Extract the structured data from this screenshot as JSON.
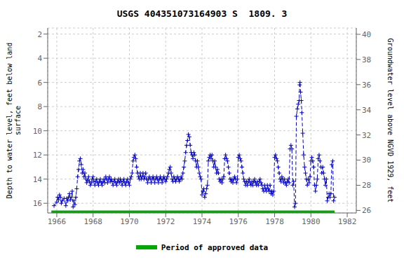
{
  "chart_data": {
    "type": "line",
    "title": "USGS 404351073164903 S  1809. 3",
    "ylabel": "Depth to water level, feet below land\nsurface",
    "y2label": "Groundwater level above NGVD 1929, feet",
    "xlim": [
      1965.5,
      1982.5
    ],
    "xticks": [
      1966,
      1968,
      1970,
      1972,
      1974,
      1976,
      1978,
      1980,
      1982
    ],
    "ylim": [
      16.8,
      1.5
    ],
    "yticks": [
      2,
      4,
      6,
      8,
      10,
      12,
      14,
      16
    ],
    "y2lim": [
      25.8,
      40.5
    ],
    "y2ticks": [
      26,
      28,
      30,
      32,
      34,
      36,
      38,
      40
    ],
    "grid": true,
    "legend": "bottom",
    "series": [
      {
        "color": "#0000cc",
        "marker": "plus",
        "line_style": "dashed",
        "x": [
          1965.85,
          1966.0,
          1966.05,
          1966.1,
          1966.15,
          1966.2,
          1966.25,
          1966.3,
          1966.4,
          1966.5,
          1966.55,
          1966.6,
          1966.65,
          1966.7,
          1966.75,
          1966.8,
          1966.85,
          1966.9,
          1966.95,
          1967.0,
          1967.05,
          1967.1,
          1967.15,
          1967.2,
          1967.25,
          1967.3,
          1967.35,
          1967.4,
          1967.45,
          1967.5,
          1967.55,
          1967.6,
          1967.65,
          1967.7,
          1967.75,
          1967.8,
          1967.85,
          1967.9,
          1967.95,
          1968.0,
          1968.05,
          1968.1,
          1968.15,
          1968.2,
          1968.25,
          1968.3,
          1968.35,
          1968.4,
          1968.45,
          1968.5,
          1968.55,
          1968.6,
          1968.65,
          1968.7,
          1968.75,
          1968.8,
          1968.85,
          1968.9,
          1968.95,
          1969.0,
          1969.05,
          1969.1,
          1969.15,
          1969.2,
          1969.25,
          1969.3,
          1969.35,
          1969.4,
          1969.45,
          1969.5,
          1969.55,
          1969.6,
          1969.65,
          1969.7,
          1969.75,
          1969.8,
          1969.85,
          1969.9,
          1969.95,
          1970.0,
          1970.05,
          1970.1,
          1970.15,
          1970.2,
          1970.25,
          1970.3,
          1970.35,
          1970.4,
          1970.45,
          1970.5,
          1970.55,
          1970.6,
          1970.65,
          1970.7,
          1970.75,
          1970.8,
          1970.85,
          1970.9,
          1970.95,
          1971.0,
          1971.05,
          1971.1,
          1971.15,
          1971.2,
          1971.25,
          1971.3,
          1971.35,
          1971.4,
          1971.45,
          1971.5,
          1971.55,
          1971.6,
          1971.65,
          1971.7,
          1971.75,
          1971.8,
          1971.85,
          1971.9,
          1971.95,
          1972.0,
          1972.05,
          1972.1,
          1972.15,
          1972.2,
          1972.25,
          1972.3,
          1972.35,
          1972.4,
          1972.45,
          1972.5,
          1972.55,
          1972.6,
          1972.65,
          1972.7,
          1972.75,
          1972.8,
          1972.85,
          1972.9,
          1972.95,
          1973.0,
          1973.05,
          1973.1,
          1973.15,
          1973.2,
          1973.25,
          1973.3,
          1973.35,
          1973.4,
          1973.45,
          1973.5,
          1973.55,
          1973.6,
          1973.65,
          1973.7,
          1973.75,
          1973.8,
          1973.85,
          1973.9,
          1973.95,
          1974.0,
          1974.05,
          1974.1,
          1974.15,
          1974.2,
          1974.25,
          1974.3,
          1974.35,
          1974.4,
          1974.45,
          1974.5,
          1974.55,
          1974.6,
          1974.65,
          1974.7,
          1974.75,
          1974.8,
          1974.85,
          1974.9,
          1974.95,
          1975.0,
          1975.05,
          1975.1,
          1975.15,
          1975.2,
          1975.25,
          1975.3,
          1975.35,
          1975.4,
          1975.45,
          1975.5,
          1975.55,
          1975.6,
          1975.65,
          1975.7,
          1975.75,
          1975.8,
          1975.85,
          1975.9,
          1975.95,
          1976.0,
          1976.05,
          1976.1,
          1976.15,
          1976.2,
          1976.25,
          1976.3,
          1976.35,
          1976.4,
          1976.45,
          1976.5,
          1976.55,
          1976.6,
          1976.65,
          1976.7,
          1976.75,
          1976.8,
          1976.85,
          1976.9,
          1976.95,
          1977.0,
          1977.05,
          1977.1,
          1977.15,
          1977.2,
          1977.25,
          1977.3,
          1977.35,
          1977.4,
          1977.45,
          1977.5,
          1977.55,
          1977.6,
          1977.65,
          1977.7,
          1977.75,
          1977.8,
          1977.85,
          1977.9,
          1977.95,
          1978.0,
          1978.05,
          1978.1,
          1978.15,
          1978.2,
          1978.25,
          1978.3,
          1978.35,
          1978.4,
          1978.45,
          1978.5,
          1978.55,
          1978.6,
          1978.65,
          1978.7,
          1978.75,
          1978.8,
          1978.85,
          1978.9,
          1978.95,
          1979.0,
          1979.05,
          1979.1,
          1979.15,
          1979.2,
          1979.25,
          1979.3,
          1979.35,
          1979.38,
          1979.4,
          1979.43,
          1979.47,
          1979.5,
          1979.55,
          1979.6,
          1979.65,
          1979.7,
          1979.75,
          1979.8,
          1979.85,
          1979.9,
          1979.95,
          1980.0,
          1980.05,
          1980.1,
          1980.15,
          1980.2,
          1980.25,
          1980.3,
          1980.35,
          1980.4,
          1980.45,
          1980.5,
          1980.55,
          1980.6,
          1980.65,
          1980.7,
          1980.75,
          1980.8,
          1980.85,
          1980.9,
          1980.95,
          1981.0,
          1981.05,
          1981.1,
          1981.15,
          1981.2,
          1981.25,
          1981.3
        ],
        "values": [
          16.2,
          15.9,
          15.5,
          15.7,
          15.3,
          15.5,
          16.0,
          15.8,
          15.6,
          16.2,
          15.6,
          15.8,
          15.5,
          15.2,
          15.7,
          15.5,
          15.0,
          16.3,
          15.8,
          16.1,
          15.5,
          14.8,
          13.8,
          13.2,
          12.5,
          12.3,
          12.8,
          13.5,
          13.2,
          13.8,
          13.5,
          14.0,
          14.3,
          14.1,
          13.8,
          14.2,
          14.5,
          14.3,
          14.0,
          13.8,
          14.2,
          14.5,
          14.2,
          14.0,
          14.3,
          14.5,
          14.2,
          14.0,
          14.3,
          14.5,
          14.2,
          14.0,
          14.3,
          13.8,
          14.0,
          14.3,
          14.0,
          13.8,
          14.2,
          14.0,
          14.2,
          14.5,
          14.2,
          14.0,
          14.3,
          14.5,
          14.2,
          14.0,
          14.3,
          14.0,
          14.2,
          14.5,
          14.2,
          14.0,
          14.3,
          14.5,
          14.2,
          14.0,
          14.3,
          14.5,
          14.0,
          13.8,
          13.5,
          12.5,
          12.2,
          12.0,
          12.3,
          13.0,
          13.5,
          13.8,
          14.0,
          13.5,
          14.0,
          13.8,
          13.5,
          14.0,
          13.8,
          13.5,
          14.0,
          14.3,
          14.0,
          13.8,
          14.0,
          14.3,
          14.0,
          13.8,
          14.0,
          14.3,
          14.0,
          13.8,
          14.0,
          14.3,
          14.0,
          13.8,
          14.0,
          14.3,
          14.0,
          13.8,
          14.0,
          14.2,
          14.0,
          13.8,
          13.5,
          13.2,
          13.0,
          13.5,
          14.0,
          14.2,
          13.8,
          14.0,
          14.2,
          14.0,
          13.8,
          14.0,
          14.2,
          14.0,
          13.8,
          14.0,
          13.5,
          13.0,
          12.5,
          11.8,
          11.2,
          10.8,
          10.3,
          10.5,
          11.2,
          11.8,
          12.0,
          12.3,
          11.8,
          12.0,
          12.5,
          13.0,
          12.5,
          13.0,
          13.5,
          13.8,
          14.0,
          15.3,
          15.0,
          14.8,
          15.5,
          15.2,
          14.8,
          14.5,
          12.5,
          12.2,
          12.0,
          12.3,
          12.0,
          12.5,
          13.0,
          12.5,
          13.0,
          13.5,
          13.2,
          13.5,
          14.0,
          14.2,
          14.0,
          14.3,
          14.0,
          13.8,
          12.3,
          12.0,
          12.3,
          12.5,
          13.0,
          13.5,
          14.0,
          14.2,
          14.0,
          14.3,
          14.0,
          13.8,
          14.0,
          14.3,
          14.0,
          12.2,
          12.0,
          12.3,
          12.5,
          13.0,
          13.5,
          14.0,
          14.2,
          14.5,
          14.2,
          14.5,
          14.2,
          14.0,
          14.3,
          14.5,
          14.2,
          14.5,
          14.2,
          14.0,
          14.3,
          14.5,
          14.2,
          14.5,
          14.2,
          14.0,
          14.3,
          14.5,
          14.8,
          15.0,
          14.5,
          14.8,
          15.0,
          14.5,
          14.8,
          15.0,
          14.5,
          15.2,
          15.0,
          15.3,
          15.0,
          12.2,
          12.0,
          12.3,
          12.5,
          13.0,
          13.5,
          14.0,
          14.2,
          13.8,
          14.0,
          14.3,
          14.0,
          14.3,
          14.5,
          14.2,
          14.0,
          14.3,
          11.5,
          11.2,
          11.5,
          14.5,
          14.2,
          16.3,
          16.0,
          8.8,
          8.2,
          7.8,
          7.5,
          6.2,
          6.0,
          6.8,
          7.5,
          8.5,
          10.2,
          12.0,
          13.0,
          13.5,
          14.0,
          14.5,
          14.0,
          14.3,
          13.8,
          12.5,
          12.2,
          12.5,
          13.0,
          14.5,
          15.0,
          14.5,
          14.0,
          12.3,
          12.0,
          12.5,
          13.0,
          13.5,
          13.0,
          13.5,
          14.0,
          14.5,
          14.0,
          15.8,
          15.5,
          15.2,
          15.5,
          15.2,
          12.8,
          12.5,
          15.8,
          15.5
        ]
      },
      {
        "name": "Period of approved data",
        "color": "#00aa00",
        "line_style": "solid",
        "x": [
          1965.7,
          1981.3
        ],
        "values": [
          16.8,
          16.8
        ]
      }
    ]
  }
}
